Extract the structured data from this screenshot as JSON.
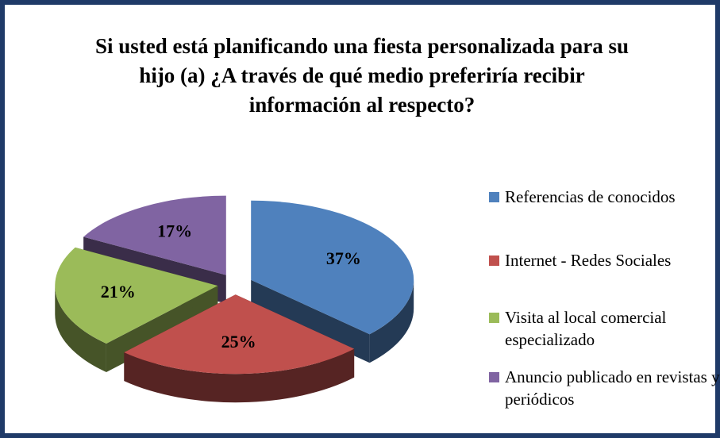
{
  "chart_data": {
    "type": "pie",
    "title": "Si usted está planificando una fiesta personalizada para su hijo (a) ¿A través de qué medio preferiría recibir información al respecto?",
    "categories": [
      "Referencias de conocidos",
      "Internet - Redes Sociales",
      "Visita al local comercial especializado",
      "Anuncio publicado en revistas y/o periódicos"
    ],
    "values": [
      37,
      25,
      21,
      17
    ],
    "value_labels": [
      "37%",
      "25%",
      "21%",
      "17%"
    ],
    "colors": [
      "#4f81bd",
      "#c0504d",
      "#9bbb59",
      "#8064a2"
    ],
    "legend": "right"
  }
}
